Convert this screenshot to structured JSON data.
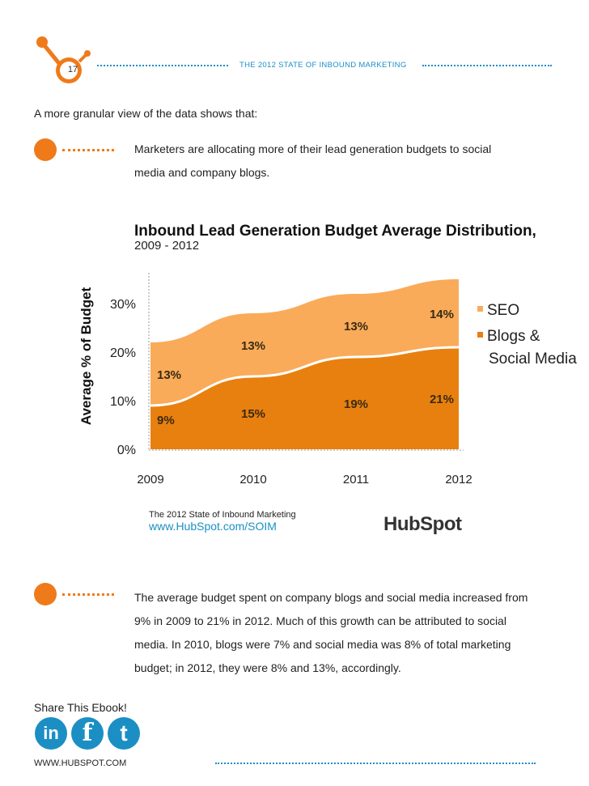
{
  "header": {
    "page_number": "17",
    "title": "THE 2012 STATE OF INBOUND MARKETING"
  },
  "intro": "A more granular view of the data shows that:",
  "bullets": [
    {
      "lines": [
        "Marketers are allocating more of their lead generation budgets to social",
        "media and company blogs."
      ]
    },
    {
      "lines": [
        "The average budget spent on company blogs and social media increased from",
        "9% in 2009 to 21% in 2012. Much of this growth can be attributed to social",
        "media. In 2010, blogs were 7% and social media was 8% of total marketing",
        "budget; in 2012, they were 8% and 13%, accordingly."
      ]
    }
  ],
  "chart_data": {
    "type": "area",
    "stacked": true,
    "title": "Inbound Lead Generation Budget Average Distribution,",
    "subtitle": "2009 - 2012",
    "ylabel": "Average % of Budget",
    "xlabel": "",
    "x": [
      "2009",
      "2010",
      "2011",
      "2012"
    ],
    "ylim": [
      0,
      35
    ],
    "yticks": [
      "0%",
      "10%",
      "20%",
      "30%"
    ],
    "ytick_values": [
      0,
      10,
      20,
      30
    ],
    "series": [
      {
        "name": "Blogs & Social Media",
        "values": [
          9,
          15,
          19,
          21
        ],
        "labels": [
          "9%",
          "15%",
          "19%",
          "21%"
        ],
        "color": "#e8800f"
      },
      {
        "name": "SEO",
        "values": [
          13,
          13,
          13,
          14
        ],
        "labels": [
          "13%",
          "13%",
          "13%",
          "14%"
        ],
        "color": "#f9ab59"
      }
    ],
    "legend": [
      "SEO",
      "Blogs &",
      "Social Media"
    ],
    "legend_position": "right",
    "source_line1": "The 2012 State of Inbound Marketing",
    "source_line2": "www.HubSpot.com/SOIM",
    "brand": "HubSpot"
  },
  "share": {
    "label": "Share This Ebook!",
    "icons": [
      "in",
      "f",
      "t"
    ]
  },
  "footer": {
    "url": "WWW.HUBSPOT.COM"
  },
  "colors": {
    "accent": "#1b8fc4",
    "orange": "#ef7a1a"
  }
}
